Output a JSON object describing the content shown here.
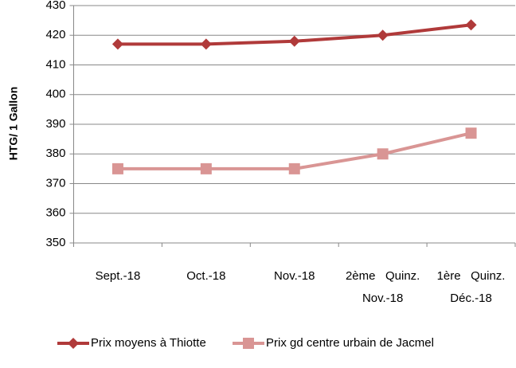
{
  "chart_data": {
    "type": "line",
    "y_label": "HTG/ 1 Gallon",
    "categories": [
      "Sept.-18",
      "Oct.-18",
      "Nov.-18",
      "2ème   Quinz.\nNov.-18",
      "1ère   Quinz.\nDéc.-18"
    ],
    "series": [
      {
        "name": "Prix moyens à Thiotte",
        "color": "#b03a3a",
        "marker": "diamond",
        "values": [
          417,
          417,
          418,
          420,
          423.5
        ]
      },
      {
        "name": "Prix gd centre urbain de Jacmel",
        "color": "#d99594",
        "marker": "square",
        "values": [
          375,
          375,
          375,
          380,
          387
        ]
      }
    ],
    "ylim": [
      350,
      430
    ],
    "yticks": [
      350,
      360,
      370,
      380,
      390,
      400,
      410,
      420,
      430
    ],
    "grid": true,
    "legend": "bottom"
  }
}
